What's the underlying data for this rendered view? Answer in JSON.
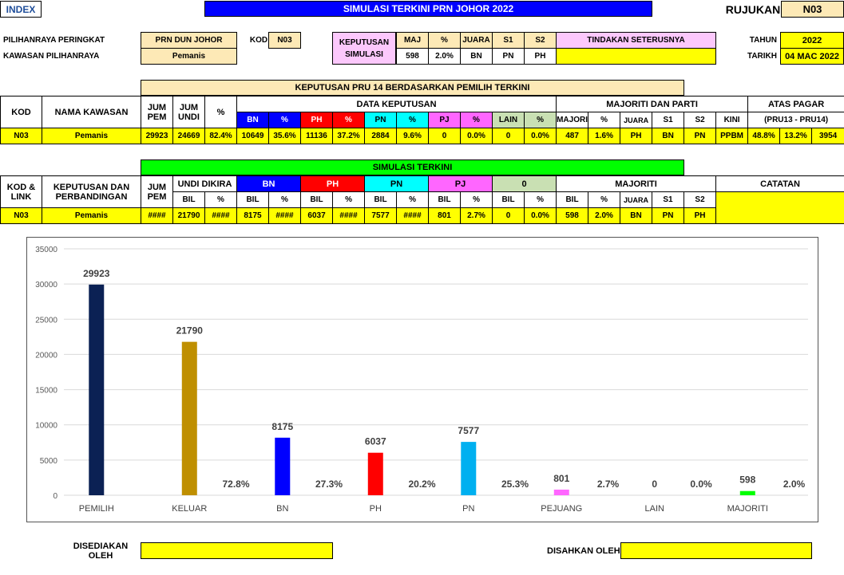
{
  "header": {
    "index_label": "INDEX",
    "title": "SIMULASI TERKINI PRN JOHOR 2022",
    "rujukan_label": "RUJUKAN",
    "rujukan_value": "N03"
  },
  "info": {
    "pilihanraya_label": "PILIHANRAYA PERINGKAT",
    "pilihanraya_value": "PRN DUN JOHOR",
    "kawasan_label": "KAWASAN PILIHANRAYA",
    "kawasan_value": "Pemanis",
    "kod_label": "KOD",
    "kod_value": "N03",
    "keputusan_label": "KEPUTUSAN SIMULASI",
    "summary_headers": [
      "MAJ",
      "%",
      "JUARA",
      "S1",
      "S2"
    ],
    "summary_values": [
      "598",
      "2.0%",
      "BN",
      "PN",
      "PH"
    ],
    "tindakan_label": "TINDAKAN SETERUSNYA",
    "tindakan_value": "",
    "tahun_label": "TAHUN",
    "tahun_value": "2022",
    "tarikh_label": "TARIKH",
    "tarikh_value": "04 MAC 2022"
  },
  "pru14": {
    "banner": "KEPUTUSAN PRU 14 BERDASARKAN PEMILIH TERKINI",
    "col_kod": "KOD",
    "col_nama": "NAMA KAWASAN",
    "col_jum_pem": "JUM PEM",
    "col_jum_undi": "JUM UNDI",
    "col_pct": "%",
    "data_keputusan": "DATA KEPUTUSAN",
    "majoriti_parti": "MAJORITI DAN PARTI",
    "atas_pagar": "ATAS PAGAR",
    "sub_headers": [
      "BN",
      "%",
      "PH",
      "%",
      "PN",
      "%",
      "PJ",
      "%",
      "LAIN",
      "%",
      "MAJORITI",
      "%",
      "JUARA",
      "S1",
      "S2",
      "KINI",
      "(PRU13 - PRU14)"
    ],
    "row": [
      "N03",
      "Pemanis",
      "29923",
      "24669",
      "82.4%",
      "10649",
      "35.6%",
      "11136",
      "37.2%",
      "2884",
      "9.6%",
      "0",
      "0.0%",
      "0",
      "0.0%",
      "487",
      "1.6%",
      "PH",
      "BN",
      "PN",
      "PPBM",
      "48.8%",
      "13.2%",
      "3954"
    ]
  },
  "simulasi": {
    "banner": "SIMULASI TERKINI",
    "col_kod": "KOD & LINK",
    "col_keputusan": "KEPUTUSAN DAN PERBANDINGAN",
    "col_jum_pem": "JUM PEM",
    "undi_dikira": "UNDI DIKIRA",
    "party_headers": [
      "BN",
      "PH",
      "PN",
      "PJ",
      "0"
    ],
    "majoriti": "MAJORITI",
    "catatan": "CATATAN",
    "sub_headers": [
      "BIL",
      "%",
      "BIL",
      "%",
      "BIL",
      "%",
      "BIL",
      "%",
      "BIL",
      "%",
      "BIL",
      "%",
      "BIL",
      "%",
      "JUARA",
      "S1",
      "S2"
    ],
    "row": [
      "N03",
      "Pemanis",
      "####",
      "21790",
      "####",
      "8175",
      "####",
      "6037",
      "####",
      "7577",
      "####",
      "801",
      "2.7%",
      "0",
      "0.0%",
      "598",
      "2.0%",
      "BN",
      "PN",
      "PH"
    ],
    "catatan_value": ""
  },
  "chart_data": {
    "type": "bar",
    "categories": [
      "PEMILIH",
      "KELUAR",
      "BN",
      "PH",
      "PN",
      "PEJUANG",
      "LAIN",
      "MAJORITI"
    ],
    "series": [
      {
        "values": [
          29923,
          21790,
          8175,
          6037,
          7577,
          801,
          0,
          598
        ]
      }
    ],
    "colors": [
      "#0b2154",
      "#bf8f00",
      "#0000ff",
      "#ff0000",
      "#00b0f0",
      "#ff66ff",
      "#cccccc",
      "#00ff00"
    ],
    "percent_labels": [
      "",
      "72.8%",
      "27.3%",
      "20.2%",
      "25.3%",
      "2.7%",
      "0.0%",
      "2.0%"
    ],
    "ylim": [
      0,
      35000
    ],
    "yticks": [
      0,
      5000,
      10000,
      15000,
      20000,
      25000,
      30000,
      35000
    ],
    "grid": true
  },
  "footer": {
    "disediakan_label": "DISEDIAKAN OLEH",
    "disediakan_value": "",
    "disahkan_label": "DISAHKAN OLEH",
    "disahkan_value": ""
  }
}
